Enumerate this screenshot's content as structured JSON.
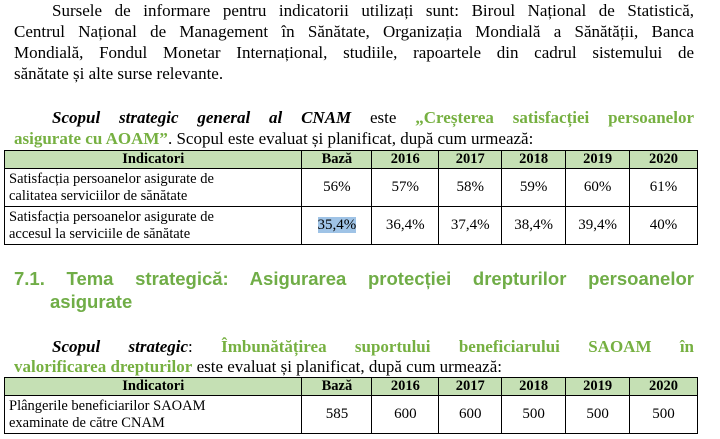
{
  "intro": {
    "line1": "Sursele de informare pentru indicatorii utilizați sunt: Biroul Național de Statistică,",
    "line2": "Centrul Național de Management în Sănătate, Organizația Mondială a Sănătății, Banca",
    "line3": "Mondială, Fondul Monetar Internațional, studiile, rapoartele din cadrul sistemului de",
    "line4": "sănătate și alte surse relevante."
  },
  "scope1": {
    "label": "Scopul strategic general al CNAM",
    "connector": "este",
    "goal_part1": "„Creșterea satisfacției persoanelor",
    "goal_part2": "asigurate cu AOAM”",
    "rest": ". Scopul este evaluat și planificat, după cum urmează:"
  },
  "table1": {
    "headers": [
      "Indicatori",
      "Bază",
      "2016",
      "2017",
      "2018",
      "2019",
      "2020"
    ],
    "rows": [
      {
        "line1": "Satisfacția persoanelor asigurate de",
        "line2": "calitatea serviciilor de sănătate",
        "values": [
          "56%",
          "57%",
          "58%",
          "59%",
          "60%",
          "61%"
        ]
      },
      {
        "line1": "Satisfacția persoanelor asigurate de",
        "line2": "accesul la serviciile de sănătate",
        "values": [
          "35,4%",
          "36,4%",
          "37,4%",
          "38,4%",
          "39,4%",
          "40%"
        ]
      }
    ]
  },
  "section": {
    "line1": "7.1. Tema strategică: Asigurarea protecției drepturilor persoanelor",
    "line2": "asigurate"
  },
  "scope2": {
    "label": "Scopul strategic",
    "colon": ":",
    "goal_part1": "Îmbunătățirea suportului beneficiarului SAOAM în",
    "goal_part2": "valorificarea drepturilor",
    "rest": " este evaluat și planificat, după cum urmează:"
  },
  "table2": {
    "headers": [
      "Indicatori",
      "Bază",
      "2016",
      "2017",
      "2018",
      "2019",
      "2020"
    ],
    "rows": [
      {
        "line1": "Plângerile beneficiarilor SAOAM",
        "line2": "examinate de către CNAM",
        "values": [
          "585",
          "600",
          "600",
          "500",
          "500",
          "500"
        ]
      }
    ]
  },
  "colors": {
    "header_fill": "#c5e0b4",
    "accent_green": "#76b041",
    "selection": "#9fc3e6"
  }
}
